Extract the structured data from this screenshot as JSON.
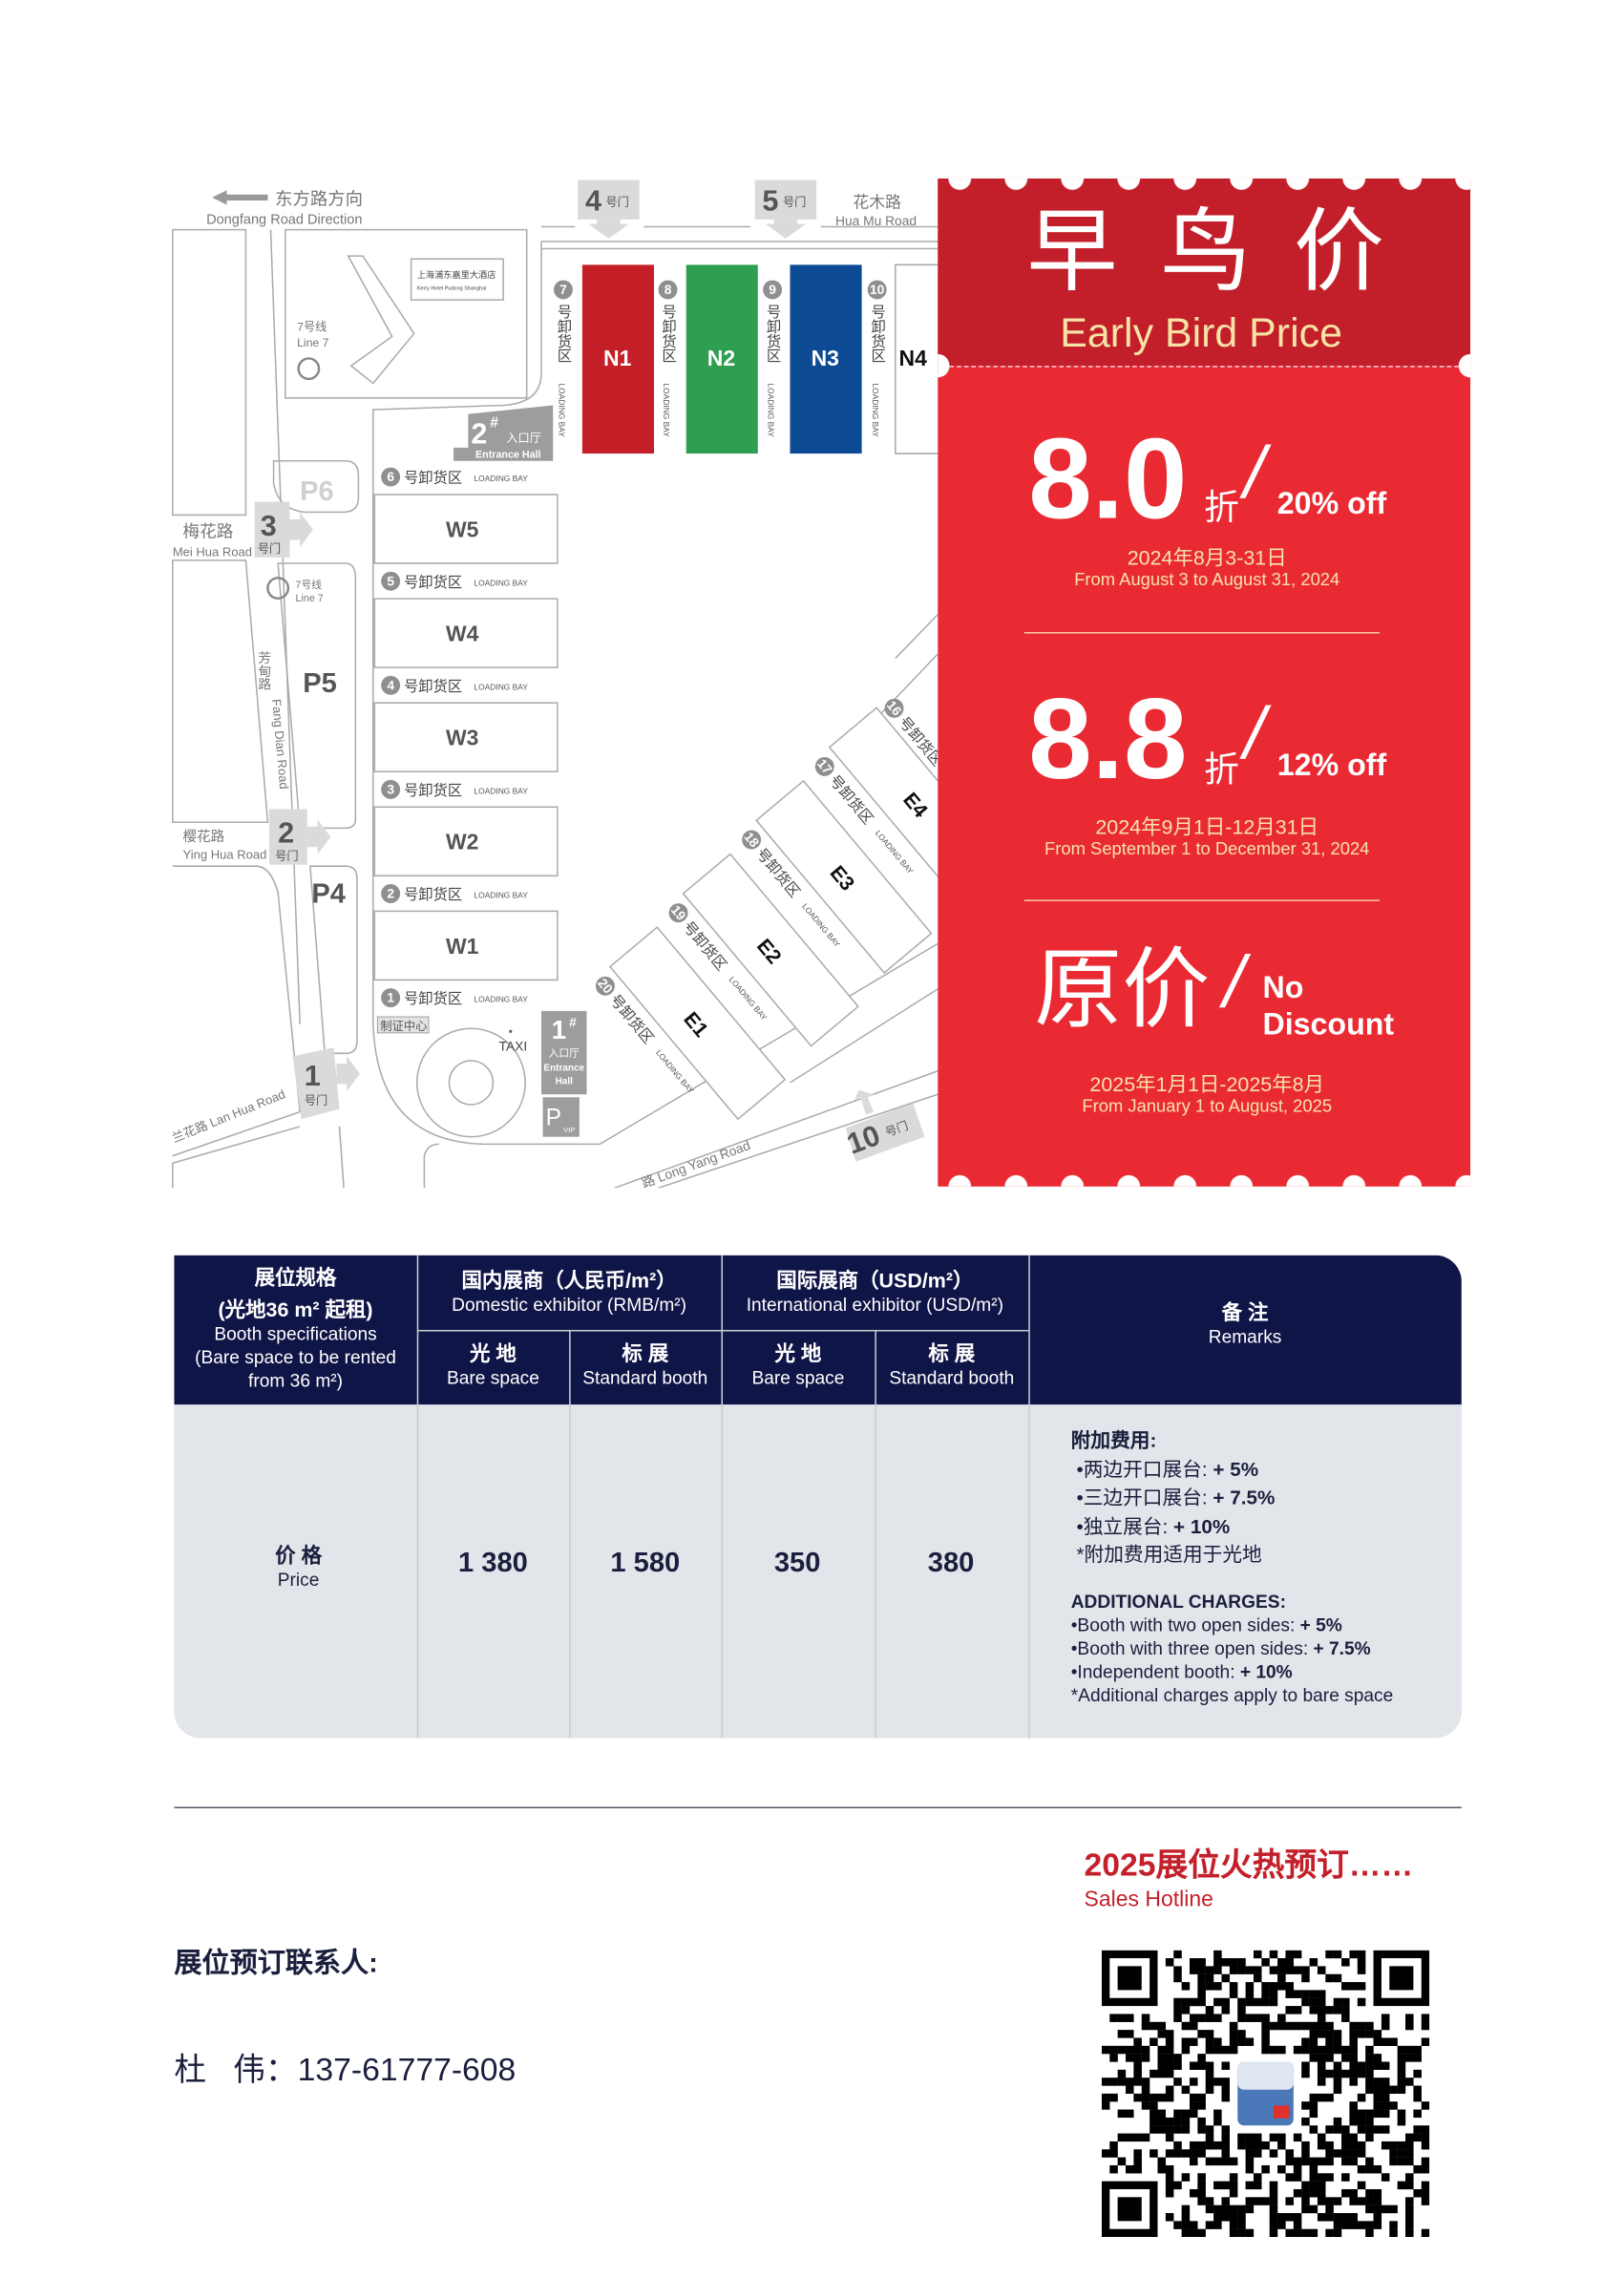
{
  "map": {
    "direction_cn": "东方路方向",
    "direction_en": "Dongfang Road Direction",
    "roads": {
      "hua_mu_cn": "花木路",
      "hua_mu_en": "Hua Mu Road",
      "mei_hua_cn": "梅花路",
      "mei_hua_en": "Mei Hua Road",
      "ying_hua_cn": "樱花路",
      "ying_hua_en": "Ying Hua Road",
      "lan_hua": "兰花路 Lan Hua Road",
      "fang_dian_cn": "芳甸路",
      "fang_dian_en": "Fang Dian Road",
      "long_yang": "路 Long Yang Road"
    },
    "gate_suffix": "号门",
    "gates": [
      "4",
      "5",
      "3",
      "2",
      "1",
      "10"
    ],
    "hotel_cn": "上海浦东嘉里大酒店",
    "hotel_en": "Kerry Hotel Pudong Shanghai",
    "metro_cn": "7号线",
    "metro_en": "Line 7",
    "parking": [
      "P6",
      "P5",
      "P4"
    ],
    "parking_vip": "P",
    "parking_vip_sub": "VIP",
    "loading_cn": "号卸货区",
    "loading_en": "LOADING BAY",
    "north_halls": [
      {
        "name": "N1",
        "color": "#c41e26"
      },
      {
        "name": "N2",
        "color": "#2f9e50"
      },
      {
        "name": "N3",
        "color": "#0d4a94"
      },
      {
        "name": "N4",
        "color": "#ffffff"
      }
    ],
    "north_bays": [
      "7",
      "8",
      "9",
      "10"
    ],
    "west_halls": [
      {
        "name": "W5",
        "bay": "6"
      },
      {
        "name": "W4",
        "bay": "5"
      },
      {
        "name": "W3",
        "bay": "4"
      },
      {
        "name": "W2",
        "bay": "3"
      },
      {
        "name": "W1",
        "bay": "2"
      }
    ],
    "west_last_bay": "1",
    "east_halls": [
      {
        "name": "E1",
        "bay": "20"
      },
      {
        "name": "E2",
        "bay": "19"
      },
      {
        "name": "E3",
        "bay": "18"
      },
      {
        "name": "E4",
        "bay": "17"
      }
    ],
    "east_last_bay": "16",
    "entrance2_num": "2",
    "entrance1_num": "1",
    "hash": "#",
    "entrance_cn": "入口厅",
    "entrance_en": "Entrance Hall",
    "entrance_en_1": "Entrance",
    "entrance_en_2": "Hall",
    "cert_center": "制证中心",
    "taxi": "TAXI"
  },
  "promo": {
    "title_cn": "早 鸟 价",
    "title_en": "Early Bird Price",
    "colors": {
      "header": "#c21f2a",
      "body": "#ea2a33",
      "accent": "#f7e3a6"
    },
    "tiers": [
      {
        "discount": "8.0",
        "unit": "折",
        "slash": "/",
        "off": "20% off",
        "date_cn": "2024年8月3-31日",
        "date_en": "From August 3 to August 31, 2024"
      },
      {
        "discount": "8.8",
        "unit": "折",
        "slash": "/",
        "off": "12% off",
        "date_cn": "2024年9月1日-12月31日",
        "date_en": "From September 1 to December 31, 2024"
      },
      {
        "discount": "原价",
        "slash": "/",
        "off_1": "No",
        "off_2": "Discount",
        "date_cn": "2025年1月1日-2025年8月",
        "date_en": "From January 1 to August, 2025"
      }
    ]
  },
  "table": {
    "spec_cn": "展位规格",
    "spec_cn2": "(光地36 m² 起租)",
    "spec_en1": "Booth specifications",
    "spec_en2": "(Bare space to be rented",
    "spec_en3": "from 36 m²)",
    "domestic_cn": "国内展商（人民币/m²）",
    "domestic_en": "Domestic exhibitor (RMB/m²)",
    "intl_cn": "国际展商（USD/m²）",
    "intl_en": "International exhibitor (USD/m²)",
    "bare_cn": "光  地",
    "bare_en": "Bare space",
    "std_cn": "标  展",
    "std_en": "Standard booth",
    "remarks_cn": "备  注",
    "remarks_en": "Remarks",
    "price_cn": "价  格",
    "price_en": "Price",
    "prices": [
      "1 380",
      "1 580",
      "350",
      "380"
    ],
    "remarks": {
      "cn_title": "附加费用:",
      "cn_items": [
        {
          "label": "•两边开口展台: ",
          "value": "+ 5%"
        },
        {
          "label": "•三边开口展台: ",
          "value": "+ 7.5%"
        },
        {
          "label": "•独立展台: ",
          "value": "+ 10%"
        }
      ],
      "cn_note": "*附加费用适用于光地",
      "en_title": "ADDITIONAL CHARGES:",
      "en_items": [
        {
          "label": "•Booth with two open sides: ",
          "value": "+ 5%"
        },
        {
          "label": "•Booth with three open sides: ",
          "value": "+ 7.5%"
        },
        {
          "label": "•Independent booth: ",
          "value": "+ 10%"
        }
      ],
      "en_note": "*Additional charges apply to bare space"
    }
  },
  "footer": {
    "hotline_cn": "2025展位火热预订……",
    "hotline_en": "Sales Hotline",
    "contact_label": "展位预订联系人:",
    "contact_name": "杜   伟：",
    "contact_phone": "137-61777-608"
  }
}
